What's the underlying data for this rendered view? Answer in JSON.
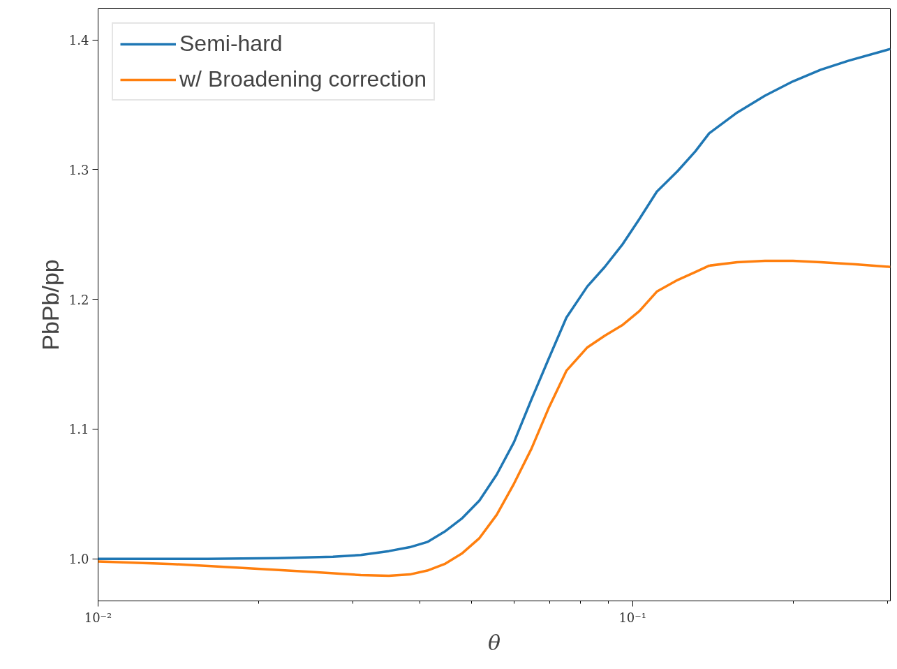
{
  "chart_data": {
    "type": "line",
    "xlabel": "θ",
    "ylabel": "PbPb/pp",
    "log": "x",
    "grid": false,
    "legend": "top left",
    "marker": "none",
    "line_style": "solid",
    "xlim": [
      0.01,
      0.3036
    ],
    "ylim": [
      0.9676,
      1.424
    ],
    "xticks": [
      {
        "value": 0.01,
        "label": "10⁻²"
      },
      {
        "value": 0.02,
        "label": null
      },
      {
        "value": 0.03,
        "label": null
      },
      {
        "value": 0.04,
        "label": null
      },
      {
        "value": 0.05,
        "label": null
      },
      {
        "value": 0.06,
        "label": null
      },
      {
        "value": 0.07,
        "label": null
      },
      {
        "value": 0.08,
        "label": null
      },
      {
        "value": 0.09,
        "label": null
      },
      {
        "value": 0.1,
        "label": "10⁻¹"
      },
      {
        "value": 0.2,
        "label": null
      },
      {
        "value": 0.3,
        "label": null
      }
    ],
    "yticks": [
      {
        "value": 1.0,
        "label": "1.0"
      },
      {
        "value": 1.1,
        "label": "1.1"
      },
      {
        "value": 1.2,
        "label": "1.2"
      },
      {
        "value": 1.3,
        "label": "1.3"
      },
      {
        "value": 1.4,
        "label": "1.4"
      }
    ],
    "series": [
      {
        "name": "Semi-hard",
        "color": "#1f77b4",
        "x": [
          0.01,
          0.01602,
          0.02163,
          0.0275,
          0.031,
          0.035,
          0.0383,
          0.0413,
          0.0445,
          0.0479,
          0.0517,
          0.0557,
          0.06,
          0.0647,
          0.0698,
          0.0752,
          0.0823,
          0.0887,
          0.0956,
          0.103,
          0.111,
          0.1215,
          0.131,
          0.1391,
          0.1569,
          0.1769,
          0.1995,
          0.2249,
          0.2537,
          0.3036
        ],
        "values": [
          1.0,
          1.0,
          1.0005,
          1.0016,
          1.003,
          1.006,
          1.009,
          1.013,
          1.021,
          1.031,
          1.045,
          1.065,
          1.09,
          1.123,
          1.155,
          1.186,
          1.21,
          1.225,
          1.242,
          1.262,
          1.283,
          1.299,
          1.314,
          1.328,
          1.344,
          1.357,
          1.368,
          1.377,
          1.384,
          1.393
        ]
      },
      {
        "name": "w/ Broadening correction",
        "color": "#ff7f0e",
        "x": [
          0.01,
          0.01379,
          0.01862,
          0.02513,
          0.031,
          0.035,
          0.0383,
          0.0413,
          0.0445,
          0.0479,
          0.0517,
          0.0557,
          0.06,
          0.0647,
          0.0698,
          0.0752,
          0.0823,
          0.0887,
          0.0956,
          0.103,
          0.111,
          0.1215,
          0.131,
          0.1391,
          0.1569,
          0.1769,
          0.1995,
          0.2249,
          0.2614,
          0.3036
        ],
        "values": [
          0.998,
          0.996,
          0.993,
          0.99,
          0.9875,
          0.987,
          0.988,
          0.991,
          0.996,
          1.004,
          1.016,
          1.034,
          1.058,
          1.085,
          1.117,
          1.145,
          1.163,
          1.172,
          1.18,
          1.191,
          1.206,
          1.215,
          1.221,
          1.226,
          1.2286,
          1.2297,
          1.2297,
          1.2286,
          1.227,
          1.225
        ]
      }
    ]
  }
}
